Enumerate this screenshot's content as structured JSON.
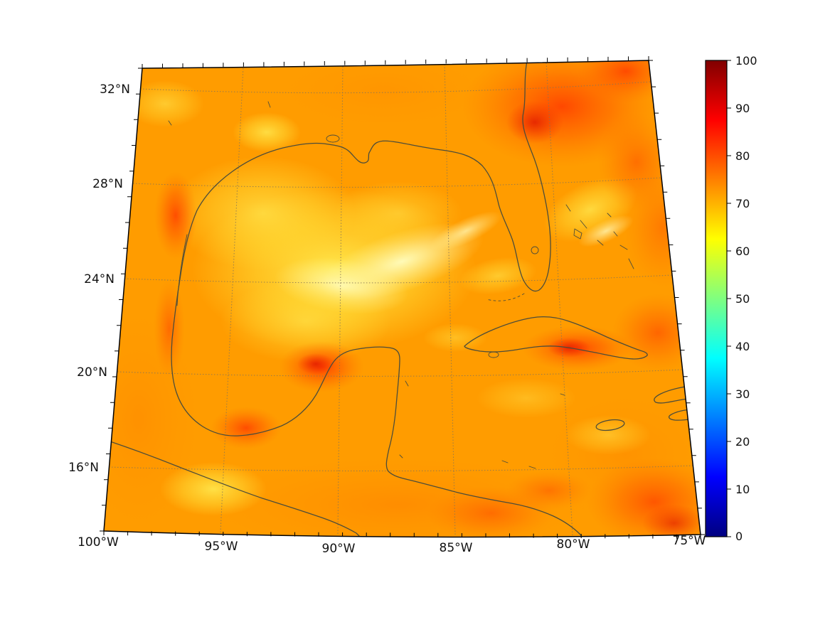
{
  "figure": {
    "background_color": "#ffffff",
    "kind": "geographic heatmap with colorbar",
    "projection": "conic (Lambert-conformal-like) with curved graticule"
  },
  "map": {
    "region_name": "Gulf of Mexico and western Caribbean",
    "coastline_color": "#4d4d3a",
    "boundary_color": "#000000",
    "gridline_style": "dotted",
    "base_field_color": "#ff9c00"
  },
  "labels": {
    "lat": [
      "32°N",
      "28°N",
      "24°N",
      "20°N",
      "16°N"
    ],
    "lon": [
      "100°W",
      "95°W",
      "90°W",
      "85°W",
      "80°W",
      "75°W"
    ],
    "colorbar": [
      "100",
      "90",
      "80",
      "70",
      "60",
      "50",
      "40",
      "30",
      "20",
      "10",
      "0"
    ]
  },
  "colorbar": {
    "min": 0,
    "max": 100,
    "tick_step": 10,
    "orientation": "vertical",
    "position": "right",
    "colormap": "jet",
    "gradient_stops_top_to_bottom": [
      "#800000",
      "#ff0000",
      "#ffff00",
      "#00ffff",
      "#0000ff",
      "#000080"
    ]
  },
  "chart_data": {
    "type": "heatmap",
    "subtype": "geographic scalar field over map",
    "title": "",
    "xlabel": "",
    "ylabel": "",
    "extent": {
      "lon_min": -100,
      "lon_max": -75,
      "lat_min": 14.5,
      "lat_max": 33
    },
    "x_tick_labels": [
      "100°W",
      "95°W",
      "90°W",
      "85°W",
      "80°W",
      "75°W"
    ],
    "y_tick_labels": [
      "32°N",
      "28°N",
      "24°N",
      "20°N",
      "16°N"
    ],
    "grid": {
      "on": true,
      "style": "dotted",
      "lat_interval_deg": 4,
      "lon_interval_deg": 5
    },
    "colorbar_range": [
      0,
      100
    ],
    "colorbar_ticks": [
      0,
      10,
      20,
      30,
      40,
      50,
      60,
      70,
      80,
      90,
      100
    ],
    "colormap": "jet",
    "displayed_value_range": [
      55,
      88
    ],
    "field_features": [
      {
        "area": "most of domain (background)",
        "value": 72,
        "appearance": "orange"
      },
      {
        "area": "central Gulf of Mexico band",
        "approx_lon": -89,
        "approx_lat": 25,
        "value": 60,
        "appearance": "yellow minimum band with pale streaks"
      },
      {
        "area": "northeast corner, Atlantic off Georgia/Florida",
        "approx_lon": -80,
        "approx_lat": 31.5,
        "value": 85,
        "appearance": "red maximum"
      },
      {
        "area": "Bay of Campeche coast",
        "approx_lon": -92.5,
        "approx_lat": 20,
        "value": 82,
        "appearance": "red spot"
      },
      {
        "area": "south-central Cuba coast",
        "approx_lon": -80.5,
        "approx_lat": 21,
        "value": 82,
        "appearance": "red spot"
      },
      {
        "area": "western Gulf along Tamaulipas coast",
        "approx_lon": -97.3,
        "approx_lat": 27.5,
        "value": 80,
        "appearance": "red coastal strip"
      },
      {
        "area": "southeast corner of domain (Caribbean)",
        "approx_lon": -75.8,
        "approx_lat": 15.5,
        "value": 82,
        "appearance": "red patch"
      },
      {
        "area": "east of Florida / Bahamas streak",
        "approx_lon": -79.5,
        "approx_lat": 27,
        "value": 62,
        "appearance": "yellow streak"
      },
      {
        "area": "Veracruz coastal bend",
        "approx_lon": -95.5,
        "approx_lat": 18.8,
        "value": 80,
        "appearance": "red-orange spot"
      }
    ]
  }
}
